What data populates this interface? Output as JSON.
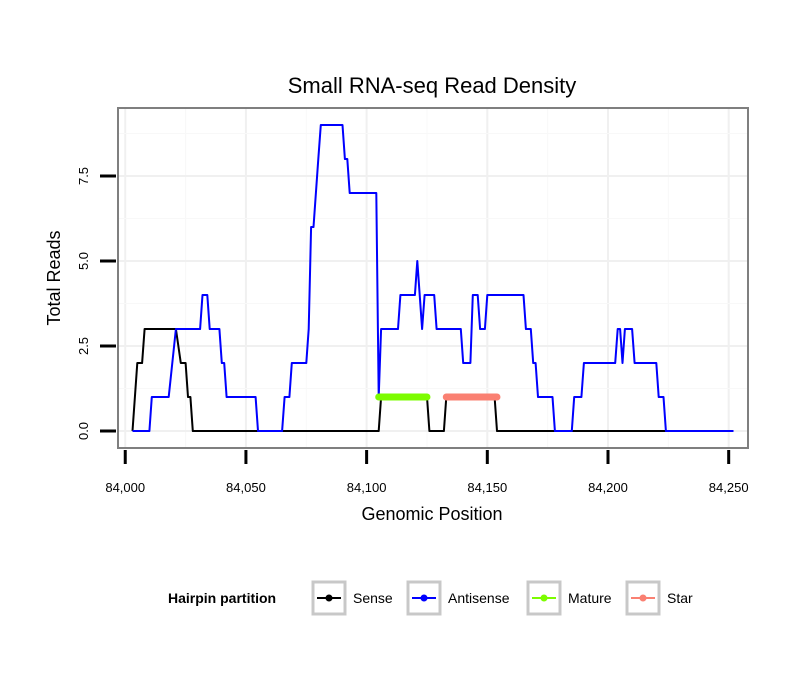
{
  "chart_data": {
    "type": "line",
    "title": "Small RNA-seq Read Density",
    "xlabel": "Genomic Position",
    "ylabel": "Total Reads",
    "xlim": [
      83997,
      84258
    ],
    "ylim": [
      -0.5,
      9.5
    ],
    "x_ticks": [
      84000,
      84050,
      84100,
      84150,
      84200,
      84250
    ],
    "x_tick_labels": [
      "84,000",
      "84,050",
      "84,100",
      "84,150",
      "84,200",
      "84,250"
    ],
    "y_ticks": [
      0,
      2.5,
      5,
      7.5
    ],
    "y_tick_labels": [
      "0.0",
      "2.5",
      "5.0",
      "7.5"
    ],
    "grid": true,
    "legend": {
      "title": "Hairpin partition",
      "position": "bottom",
      "entries": [
        "Sense",
        "Antisense",
        "Mature",
        "Star"
      ]
    },
    "series": [
      {
        "name": "Sense",
        "color": "#000000",
        "points": [
          [
            84003,
            0
          ],
          [
            84005,
            2
          ],
          [
            84007,
            2
          ],
          [
            84008,
            3
          ],
          [
            84021,
            3
          ],
          [
            84023,
            2
          ],
          [
            84025,
            2
          ],
          [
            84026,
            1
          ],
          [
            84027,
            1
          ],
          [
            84028,
            0
          ],
          [
            84105,
            0
          ],
          [
            84106,
            1
          ],
          [
            84125,
            1
          ],
          [
            84126,
            0
          ],
          [
            84132,
            0
          ],
          [
            84133,
            1
          ],
          [
            84153,
            1
          ],
          [
            84154,
            0
          ],
          [
            84252,
            0
          ]
        ]
      },
      {
        "name": "Antisense",
        "color": "#0000ff",
        "points": [
          [
            84003,
            0
          ],
          [
            84010,
            0
          ],
          [
            84011,
            1
          ],
          [
            84018,
            1
          ],
          [
            84021,
            3
          ],
          [
            84031,
            3
          ],
          [
            84032,
            4
          ],
          [
            84034,
            4
          ],
          [
            84035,
            3
          ],
          [
            84039,
            3
          ],
          [
            84040,
            2
          ],
          [
            84041,
            2
          ],
          [
            84042,
            1
          ],
          [
            84054,
            1
          ],
          [
            84055,
            0
          ],
          [
            84065,
            0
          ],
          [
            84066,
            1
          ],
          [
            84068,
            1
          ],
          [
            84069,
            2
          ],
          [
            84075,
            2
          ],
          [
            84076,
            3
          ],
          [
            84077,
            6
          ],
          [
            84078,
            6
          ],
          [
            84080,
            8
          ],
          [
            84081,
            9
          ],
          [
            84090,
            9
          ],
          [
            84091,
            8
          ],
          [
            84092,
            8
          ],
          [
            84093,
            7
          ],
          [
            84104,
            7
          ],
          [
            84105,
            1
          ],
          [
            84106,
            3
          ],
          [
            84113,
            3
          ],
          [
            84114,
            4
          ],
          [
            84120,
            4
          ],
          [
            84121,
            5
          ],
          [
            84122,
            4
          ],
          [
            84123,
            3
          ],
          [
            84124,
            4
          ],
          [
            84128,
            4
          ],
          [
            84129,
            3
          ],
          [
            84139,
            3
          ],
          [
            84140,
            2
          ],
          [
            84143,
            2
          ],
          [
            84144,
            4
          ],
          [
            84146,
            4
          ],
          [
            84147,
            3
          ],
          [
            84149,
            3
          ],
          [
            84150,
            4
          ],
          [
            84165,
            4
          ],
          [
            84166,
            3
          ],
          [
            84168,
            3
          ],
          [
            84169,
            2
          ],
          [
            84170,
            2
          ],
          [
            84171,
            1
          ],
          [
            84177,
            1
          ],
          [
            84178,
            0
          ],
          [
            84185,
            0
          ],
          [
            84186,
            1
          ],
          [
            84189,
            1
          ],
          [
            84190,
            2
          ],
          [
            84203,
            2
          ],
          [
            84204,
            3
          ],
          [
            84205,
            3
          ],
          [
            84206,
            2
          ],
          [
            84207,
            3
          ],
          [
            84210,
            3
          ],
          [
            84211,
            2
          ],
          [
            84220,
            2
          ],
          [
            84221,
            1
          ],
          [
            84223,
            1
          ],
          [
            84224,
            0
          ],
          [
            84252,
            0
          ]
        ]
      },
      {
        "name": "Mature",
        "color": "#7cfc00",
        "points": [
          [
            84105,
            1
          ],
          [
            84125,
            1
          ]
        ]
      },
      {
        "name": "Star",
        "color": "#fa8072",
        "points": [
          [
            84133,
            1
          ],
          [
            84154,
            1
          ]
        ]
      }
    ]
  }
}
